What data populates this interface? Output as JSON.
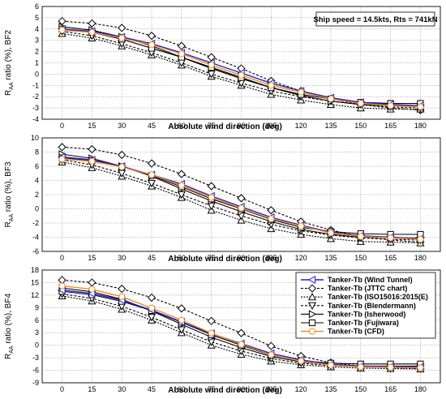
{
  "annotation": "Ship speed = 14.5kts, Rts = 741kN",
  "legend_position": "right",
  "series_styles": [
    {
      "color": "#1f1fd6",
      "marker": "tri-left",
      "dash": "",
      "width": 1.4
    },
    {
      "color": "#000000",
      "marker": "diamond",
      "dash": "3,2",
      "width": 1.1
    },
    {
      "color": "#000000",
      "marker": "tri-up",
      "dash": "2,1.5",
      "width": 1.1
    },
    {
      "color": "#000000",
      "marker": "tri-down",
      "dash": "3,2",
      "width": 1.1
    },
    {
      "color": "#000000",
      "marker": "tri-right",
      "dash": "",
      "width": 1.1
    },
    {
      "color": "#000000",
      "marker": "square",
      "dash": "",
      "width": 1.1
    },
    {
      "color": "#f28c1a",
      "marker": "circle",
      "dash": "",
      "width": 1.4
    }
  ],
  "chart_data": [
    {
      "type": "line",
      "xlabel": "Absolute wind direction (deg)",
      "ylabel": "R_AA ratio (%), BF2",
      "ylabel_main": "R",
      "ylabel_sub": "AA",
      "ylabel_rest": " ratio (%), BF2",
      "x": [
        0,
        15,
        30,
        45,
        60,
        75,
        90,
        105,
        120,
        135,
        150,
        165,
        180
      ],
      "ylim": [
        -4,
        6
      ],
      "yticks": [
        -4,
        -3,
        -2,
        -1,
        0,
        1,
        2,
        3,
        4,
        5,
        6
      ],
      "grid": true,
      "series": [
        {
          "name": "Tanker-Tb (Wind Tunnel)",
          "values": [
            4.0,
            3.8,
            3.3,
            2.7,
            1.9,
            1.0,
            0.1,
            -0.8,
            -1.5,
            -2.1,
            -2.5,
            -2.7,
            -2.8
          ]
        },
        {
          "name": "Tanker-Tb (JTTC chart)",
          "values": [
            4.7,
            4.5,
            4.1,
            3.4,
            2.5,
            1.5,
            0.5,
            -0.6,
            -1.5,
            -2.2,
            -2.7,
            -3.0,
            -3.2
          ]
        },
        {
          "name": "Tanker-Tb (ISO15016:2015(E)",
          "values": [
            3.6,
            3.2,
            2.5,
            1.7,
            0.8,
            -0.2,
            -1.0,
            -1.8,
            -2.3,
            -2.7,
            -3.0,
            -3.1,
            -3.1
          ]
        },
        {
          "name": "Tanker-Tb (Blendermann)",
          "values": [
            3.8,
            3.4,
            2.7,
            1.9,
            1.0,
            0.0,
            -0.8,
            -1.5,
            -2.0,
            -2.4,
            -2.7,
            -2.9,
            -3.0
          ]
        },
        {
          "name": "Tanker-Tb (Isherwood)",
          "values": [
            4.2,
            3.9,
            3.3,
            2.5,
            1.5,
            0.5,
            -0.4,
            -1.2,
            -1.9,
            -2.4,
            -2.7,
            -2.8,
            -2.8
          ]
        },
        {
          "name": "Tanker-Tb (Fujiwara)",
          "values": [
            4.0,
            3.7,
            3.1,
            2.3,
            1.5,
            0.6,
            -0.3,
            -1.2,
            -1.8,
            -2.2,
            -2.5,
            -2.6,
            -2.6
          ]
        },
        {
          "name": "Tanker-Tb (CFD)",
          "values": [
            3.9,
            3.7,
            3.2,
            2.6,
            1.8,
            0.8,
            -0.1,
            -1.0,
            -1.6,
            -2.2,
            -2.6,
            -2.8,
            -2.9
          ]
        }
      ]
    },
    {
      "type": "line",
      "xlabel": "Absolute wind direction (deg)",
      "ylabel": "R_AA ratio (%), BF3",
      "ylabel_main": "R",
      "ylabel_sub": "AA",
      "ylabel_rest": " ratio (%), BF3",
      "x": [
        0,
        15,
        30,
        45,
        60,
        75,
        90,
        105,
        120,
        135,
        150,
        165,
        180
      ],
      "ylim": [
        -6,
        10
      ],
      "yticks": [
        -6,
        -4,
        -2,
        0,
        2,
        4,
        6,
        8,
        10
      ],
      "grid": true,
      "series": [
        {
          "name": "Tanker-Tb (Wind Tunnel)",
          "values": [
            7.3,
            6.9,
            6.0,
            4.8,
            3.5,
            1.8,
            0.3,
            -1.2,
            -2.3,
            -3.3,
            -3.8,
            -4.0,
            -4.2
          ]
        },
        {
          "name": "Tanker-Tb (JTTC chart)",
          "values": [
            8.7,
            8.4,
            7.6,
            6.4,
            4.9,
            3.2,
            1.5,
            -0.2,
            -1.8,
            -3.0,
            -3.9,
            -4.4,
            -4.7
          ]
        },
        {
          "name": "Tanker-Tb (ISO15016:2015(E)",
          "values": [
            6.6,
            5.8,
            4.6,
            3.2,
            1.6,
            -0.2,
            -1.6,
            -2.8,
            -3.6,
            -4.2,
            -4.6,
            -4.7,
            -4.8
          ]
        },
        {
          "name": "Tanker-Tb (Blendermann)",
          "values": [
            6.9,
            6.2,
            5.0,
            3.6,
            2.0,
            0.4,
            -1.0,
            -2.2,
            -3.1,
            -3.7,
            -4.1,
            -4.3,
            -4.4
          ]
        },
        {
          "name": "Tanker-Tb (Isherwood)",
          "values": [
            7.7,
            7.1,
            6.0,
            4.6,
            2.8,
            1.1,
            -0.4,
            -1.8,
            -2.9,
            -3.6,
            -4.0,
            -4.1,
            -4.1
          ]
        },
        {
          "name": "Tanker-Tb (Fujiwara)",
          "values": [
            7.2,
            6.8,
            5.9,
            4.7,
            3.1,
            1.4,
            0.0,
            -1.5,
            -2.6,
            -3.2,
            -3.5,
            -3.6,
            -3.6
          ]
        },
        {
          "name": "Tanker-Tb (CFD)",
          "values": [
            7.0,
            6.7,
            5.9,
            4.8,
            3.3,
            1.6,
            0.1,
            -1.4,
            -2.4,
            -3.4,
            -3.9,
            -4.1,
            -4.3
          ]
        }
      ]
    },
    {
      "type": "line",
      "xlabel": "Absolute wind direction (deg)",
      "ylabel": "R_AA ratio (%), BF4",
      "ylabel_main": "R",
      "ylabel_sub": "AA",
      "ylabel_rest": " ratio (%), BF4",
      "x": [
        0,
        15,
        30,
        45,
        60,
        75,
        90,
        105,
        120,
        135,
        150,
        165,
        180
      ],
      "ylim": [
        -9,
        18
      ],
      "yticks": [
        -9,
        -6,
        -3,
        0,
        3,
        6,
        9,
        12,
        15,
        18
      ],
      "grid": true,
      "series": [
        {
          "name": "Tanker-Tb (Wind Tunnel)",
          "values": [
            13.2,
            12.4,
            10.8,
            8.4,
            5.6,
            2.8,
            0.4,
            -2.0,
            -3.5,
            -4.6,
            -5.0,
            -5.1,
            -5.2
          ]
        },
        {
          "name": "Tanker-Tb (JTTC chart)",
          "values": [
            15.6,
            15.0,
            13.5,
            11.4,
            8.8,
            5.8,
            2.9,
            -0.2,
            -2.6,
            -4.2,
            -5.0,
            -5.4,
            -5.6
          ]
        },
        {
          "name": "Tanker-Tb (ISO15016:2015(E)",
          "values": [
            11.8,
            10.6,
            8.6,
            6.0,
            3.0,
            0.0,
            -2.2,
            -3.8,
            -4.7,
            -5.2,
            -5.5,
            -5.6,
            -5.7
          ]
        },
        {
          "name": "Tanker-Tb (Blendermann)",
          "values": [
            12.3,
            11.2,
            9.3,
            6.7,
            3.7,
            0.8,
            -1.4,
            -3.2,
            -4.3,
            -4.9,
            -5.2,
            -5.3,
            -5.3
          ]
        },
        {
          "name": "Tanker-Tb (Isherwood)",
          "values": [
            13.7,
            12.8,
            11.0,
            8.2,
            5.0,
            1.9,
            -0.6,
            -2.7,
            -4.0,
            -4.7,
            -5.0,
            -5.0,
            -5.0
          ]
        },
        {
          "name": "Tanker-Tb (Fujiwara)",
          "values": [
            12.9,
            12.1,
            10.5,
            8.3,
            5.5,
            2.5,
            0.0,
            -2.4,
            -3.7,
            -4.3,
            -4.5,
            -4.5,
            -4.5
          ]
        },
        {
          "name": "Tanker-Tb (CFD)",
          "values": [
            14.2,
            13.4,
            11.6,
            8.9,
            6.0,
            2.9,
            0.2,
            -2.3,
            -3.8,
            -4.8,
            -5.2,
            -5.3,
            -5.4
          ]
        }
      ]
    }
  ]
}
